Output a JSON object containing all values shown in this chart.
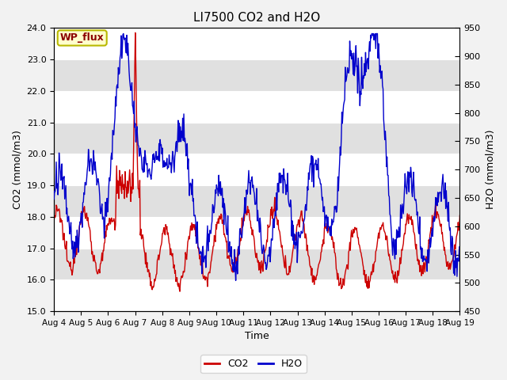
{
  "title": "LI7500 CO2 and H2O",
  "xlabel": "Time",
  "ylabel_left": "CO2 (mmol/m3)",
  "ylabel_right": "H2O (mmol/m3)",
  "ylim_left": [
    15.0,
    24.0
  ],
  "ylim_right": [
    450,
    950
  ],
  "yticks_left": [
    15.0,
    16.0,
    17.0,
    18.0,
    19.0,
    20.0,
    21.0,
    22.0,
    23.0,
    24.0
  ],
  "yticks_right": [
    450,
    500,
    550,
    600,
    650,
    700,
    750,
    800,
    850,
    900,
    950
  ],
  "xtick_labels": [
    "Aug 4",
    "Aug 5",
    "Aug 6",
    "Aug 7",
    "Aug 8",
    "Aug 9",
    "Aug 10",
    "Aug 11",
    "Aug 12",
    "Aug 13",
    "Aug 14",
    "Aug 15",
    "Aug 16",
    "Aug 17",
    "Aug 18",
    "Aug 19"
  ],
  "co2_color": "#cc0000",
  "h2o_color": "#0000cc",
  "line_width": 1.0,
  "bg_color": "#f2f2f2",
  "plot_bg_color": "#ffffff",
  "gray_band_color": "#e0e0e0",
  "annotation_text": "WP_flux",
  "annotation_bg": "#ffffcc",
  "annotation_border": "#b8b800",
  "legend_co2": "CO2",
  "legend_h2o": "H2O",
  "title_fontsize": 11,
  "axis_label_fontsize": 9,
  "tick_fontsize": 8,
  "n_points": 720
}
